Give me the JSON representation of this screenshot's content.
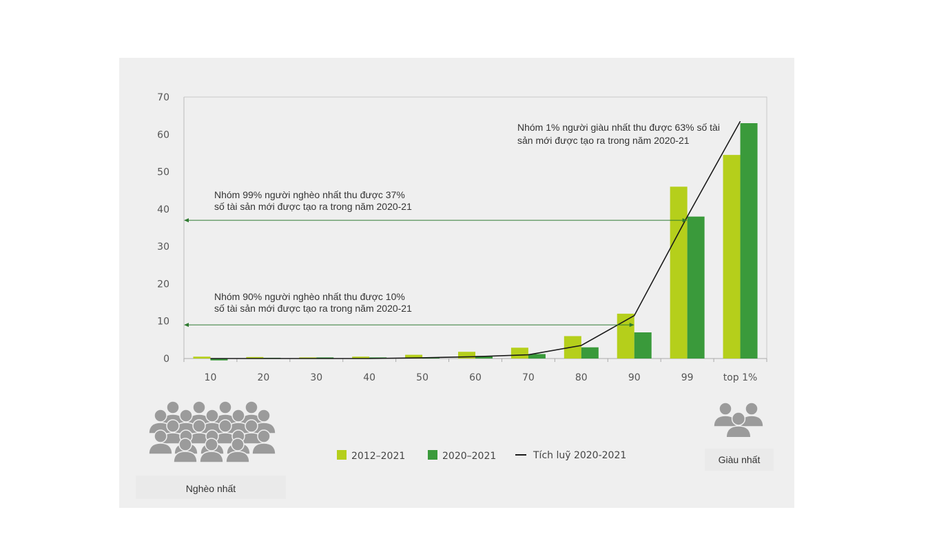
{
  "colors": {
    "series_light": "#b5cf1b",
    "series_dark": "#3a9a3b",
    "line": "#1a1a1a",
    "arrow": "#2f7a30",
    "icon": "#9b9b9b",
    "panel": "#efefef"
  },
  "chart_data": {
    "type": "bar",
    "categories": [
      "10",
      "20",
      "30",
      "40",
      "50",
      "60",
      "70",
      "80",
      "90",
      "99",
      "top 1%"
    ],
    "series": [
      {
        "name": "2012–2021",
        "values": [
          0.5,
          0.4,
          0.3,
          0.5,
          1.0,
          1.8,
          2.9,
          6.0,
          12.0,
          46.0,
          54.5
        ]
      },
      {
        "name": "2020–2021",
        "values": [
          -0.5,
          0.2,
          0.3,
          0.3,
          0.3,
          0.7,
          1.2,
          3.0,
          7.0,
          38.0,
          63.0
        ]
      }
    ],
    "line_series": {
      "name": "Tích luỹ 2020-2021",
      "values": [
        0,
        0,
        0,
        0,
        0.2,
        0.5,
        1.0,
        3.5,
        11.5,
        38.0,
        63.5
      ]
    },
    "yticks": [
      0,
      10,
      20,
      30,
      40,
      50,
      60,
      70
    ],
    "ylim": [
      0,
      70
    ],
    "annotations": [
      {
        "id": "top1",
        "line1": "Nhóm 1% người giàu nhất thu được 63% số tài",
        "line2": "sản mới được tạo ra trong năm 2020-21"
      },
      {
        "id": "p99",
        "line1": "Nhóm 99% người nghèo nhất thu được 37%",
        "line2": "số tài sản mới được tạo ra trong năm 2020-21",
        "arrow_value": 37,
        "arrow_to_category": "99"
      },
      {
        "id": "p90",
        "line1": "Nhóm 90% người nghèo nhất thu được 10%",
        "line2": "số tài sản mới được tạo ra trong năm 2020-21",
        "arrow_value": 9,
        "arrow_to_category": "90"
      }
    ]
  },
  "legend": {
    "items": [
      {
        "label": "2012–2021",
        "kind": "box",
        "color_key": "series_light"
      },
      {
        "label": "2020–2021",
        "kind": "box",
        "color_key": "series_dark"
      },
      {
        "label": "Tích luỹ 2020-2021",
        "kind": "line",
        "color_key": "line"
      }
    ]
  },
  "captions": {
    "poorest": "Nghèo nhất",
    "richest": "Giàu nhất"
  }
}
